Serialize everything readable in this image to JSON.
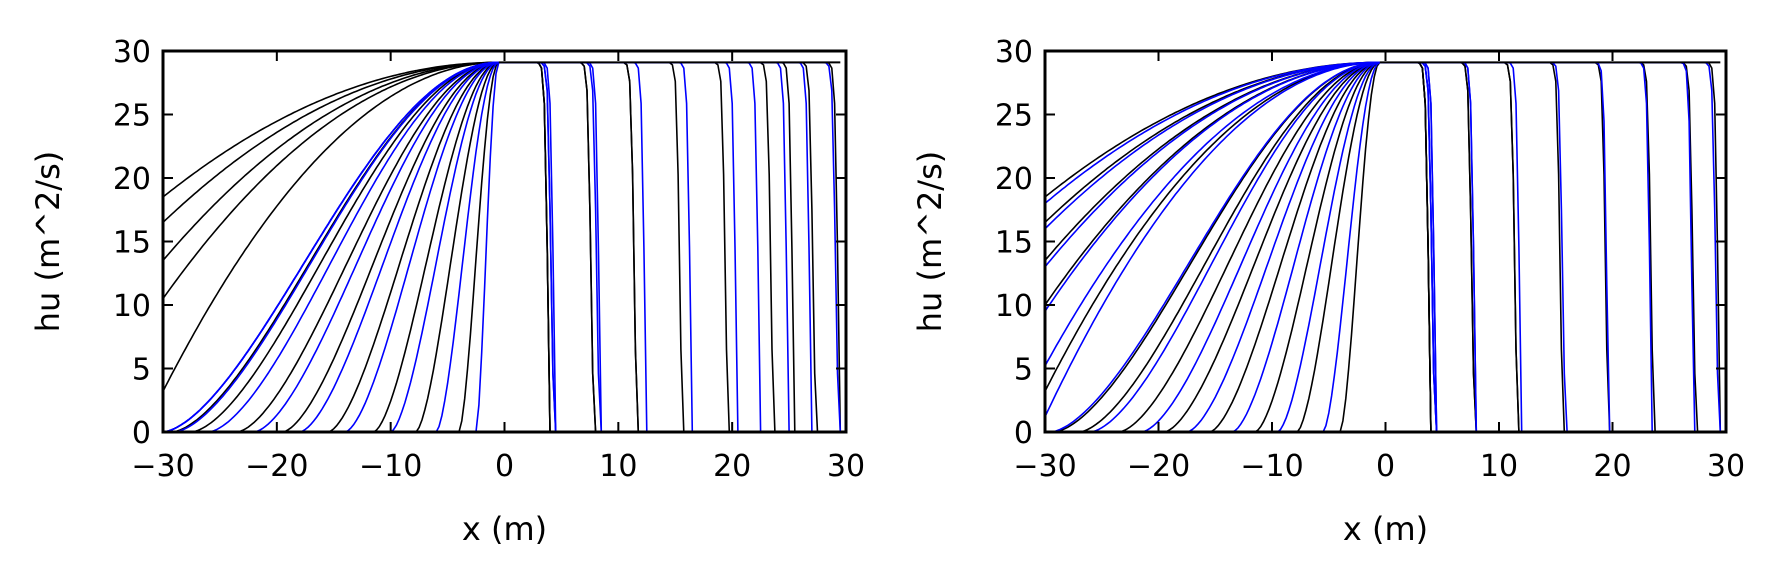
{
  "chart_data": [
    {
      "type": "line",
      "panel": "left",
      "xlabel": "x (m)",
      "ylabel": "hu (m^2/s)",
      "xlim": [
        -30,
        30
      ],
      "ylim": [
        0,
        30
      ],
      "xticks": [
        -30,
        -20,
        -10,
        0,
        10,
        20,
        30
      ],
      "yticks": [
        0,
        5,
        10,
        15,
        20,
        25,
        30
      ],
      "xtick_labels": [
        "−30",
        "−20",
        "−10",
        "0",
        "10",
        "20",
        "30"
      ],
      "ytick_labels": [
        "0",
        "5",
        "10",
        "15",
        "20",
        "25",
        "30"
      ],
      "grid": false,
      "legend": "none",
      "plateau": 29.1,
      "peak_x": -0.5,
      "series": [
        {
          "color": "#000000",
          "profiles": [
            {
              "left_x": -30,
              "left_y": 18.5,
              "front_x": 29.5
            },
            {
              "left_x": -30,
              "left_y": 16.5,
              "front_x": 27.3
            },
            {
              "left_x": -30,
              "left_y": 13.5,
              "front_x": 25.5
            },
            {
              "left_x": -30,
              "left_y": 10.5,
              "front_x": 23.6
            },
            {
              "left_x": -30,
              "left_y": 3.2,
              "front_x": 19.6
            },
            {
              "left_x": -29.2,
              "left_y": 0,
              "front_x": 15.6
            },
            {
              "left_x": -27.5,
              "left_y": 0,
              "front_x": 11.6
            },
            {
              "left_x": -23.5,
              "left_y": 0,
              "front_x": 11.6
            },
            {
              "left_x": -19.5,
              "left_y": 0,
              "front_x": 7.8
            },
            {
              "left_x": -15.5,
              "left_y": 0,
              "front_x": 7.8
            },
            {
              "left_x": -11.5,
              "left_y": 0,
              "front_x": 4.0
            },
            {
              "left_x": -7.8,
              "left_y": 0,
              "front_x": 4.0
            },
            {
              "left_x": -4.0,
              "left_y": 0,
              "front_x": 4.0
            }
          ]
        },
        {
          "color": "#0000ff",
          "profiles": [
            {
              "left_x": -30,
              "left_y": 0,
              "front_x": 29.3
            },
            {
              "left_x": -30,
              "left_y": 0,
              "front_x": 27.0
            },
            {
              "left_x": -30,
              "left_y": 0,
              "front_x": 25.0
            },
            {
              "left_x": -30,
              "left_y": 0,
              "front_x": 22.5
            },
            {
              "left_x": -29.0,
              "left_y": 0,
              "front_x": 20.5
            },
            {
              "left_x": -26.0,
              "left_y": 0,
              "front_x": 16.5
            },
            {
              "left_x": -22.0,
              "left_y": 0,
              "front_x": 12.5
            },
            {
              "left_x": -18.0,
              "left_y": 0,
              "front_x": 8.5
            },
            {
              "left_x": -14.0,
              "left_y": 0,
              "front_x": 8.3
            },
            {
              "left_x": -10.0,
              "left_y": 0,
              "front_x": 4.5
            },
            {
              "left_x": -6.0,
              "left_y": 0,
              "front_x": 4.3
            },
            {
              "left_x": -2.5,
              "left_y": 0,
              "front_x": 4.3
            }
          ]
        }
      ]
    },
    {
      "type": "line",
      "panel": "right",
      "xlabel": "x (m)",
      "ylabel": "hu (m^2/s)",
      "xlim": [
        -30,
        30
      ],
      "ylim": [
        0,
        30
      ],
      "xticks": [
        -30,
        -20,
        -10,
        0,
        10,
        20,
        30
      ],
      "yticks": [
        0,
        5,
        10,
        15,
        20,
        25,
        30
      ],
      "xtick_labels": [
        "−30",
        "−20",
        "−10",
        "0",
        "10",
        "20",
        "30"
      ],
      "ytick_labels": [
        "0",
        "5",
        "10",
        "15",
        "20",
        "25",
        "30"
      ],
      "grid": false,
      "legend": "none",
      "plateau": 29.1,
      "peak_x": -0.5,
      "series": [
        {
          "color": "#000000",
          "profiles": [
            {
              "left_x": -30,
              "left_y": 18.5,
              "front_x": 29.5
            },
            {
              "left_x": -30,
              "left_y": 16.5,
              "front_x": 27.3
            },
            {
              "left_x": -30,
              "left_y": 13.5,
              "front_x": 23.6
            },
            {
              "left_x": -30,
              "left_y": 10.0,
              "front_x": 19.6
            },
            {
              "left_x": -30,
              "left_y": 3.2,
              "front_x": 15.6
            },
            {
              "left_x": -29.2,
              "left_y": 0,
              "front_x": 11.6
            },
            {
              "left_x": -27.0,
              "left_y": 0,
              "front_x": 11.6
            },
            {
              "left_x": -23.5,
              "left_y": 0,
              "front_x": 7.8
            },
            {
              "left_x": -19.5,
              "left_y": 0,
              "front_x": 7.8
            },
            {
              "left_x": -15.5,
              "left_y": 0,
              "front_x": 4.0
            },
            {
              "left_x": -11.5,
              "left_y": 0,
              "front_x": 4.0
            },
            {
              "left_x": -7.8,
              "left_y": 0,
              "front_x": 4.0
            },
            {
              "left_x": -4.0,
              "left_y": 0,
              "front_x": 4.0
            }
          ]
        },
        {
          "color": "#0000ff",
          "profiles": [
            {
              "left_x": -30,
              "left_y": 18.0,
              "front_x": 29.3
            },
            {
              "left_x": -30,
              "left_y": 16.0,
              "front_x": 27.2
            },
            {
              "left_x": -30,
              "left_y": 13.0,
              "front_x": 23.5
            },
            {
              "left_x": -30,
              "left_y": 9.5,
              "front_x": 19.7
            },
            {
              "left_x": -30,
              "left_y": 5.2,
              "front_x": 15.8
            },
            {
              "left_x": -30,
              "left_y": 1.2,
              "front_x": 12.0
            },
            {
              "left_x": -29.5,
              "left_y": 0,
              "front_x": 8.0
            },
            {
              "left_x": -26.0,
              "left_y": 0,
              "front_x": 8.0
            },
            {
              "left_x": -21.5,
              "left_y": 0,
              "front_x": 4.5
            },
            {
              "left_x": -17.5,
              "left_y": 0,
              "front_x": 4.5
            },
            {
              "left_x": -13.5,
              "left_y": 0,
              "front_x": 4.3
            },
            {
              "left_x": -9.5,
              "left_y": 0,
              "front_x": 4.3
            },
            {
              "left_x": -5.5,
              "left_y": 0,
              "front_x": 4.3
            }
          ]
        }
      ]
    }
  ]
}
